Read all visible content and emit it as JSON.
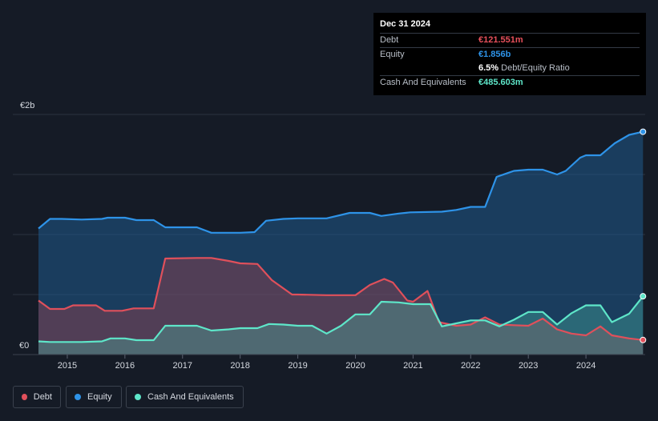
{
  "tooltip": {
    "date": "Dec 31 2024",
    "rows": [
      {
        "label": "Debt",
        "value": "€121.551m",
        "color": "#e8505b"
      },
      {
        "label": "Equity",
        "value": "€1.856b",
        "color": "#2e93e8"
      },
      {
        "label": "",
        "value": "6.5%",
        "suffix": " Debt/Equity Ratio",
        "color": "#ffffff"
      },
      {
        "label": "Cash And Equivalents",
        "value": "€485.603m",
        "color": "#5ee6c9"
      }
    ]
  },
  "legend": [
    {
      "label": "Debt",
      "color": "#e0505b"
    },
    {
      "label": "Equity",
      "color": "#2e93e8"
    },
    {
      "label": "Cash And Equivalents",
      "color": "#5ee6c9"
    }
  ],
  "chart_data": {
    "type": "area",
    "y_axis_labels": [
      "€2b",
      "€0"
    ],
    "ylim": [
      0,
      2000
    ],
    "xlim": [
      2014.5,
      2025.0
    ],
    "x_ticks": [
      "2015",
      "2016",
      "2017",
      "2018",
      "2019",
      "2020",
      "2021",
      "2022",
      "2023",
      "2024"
    ],
    "grid": true,
    "series": [
      {
        "name": "Equity",
        "color": "#2e93e8",
        "points": [
          [
            2014.5,
            1050
          ],
          [
            2014.7,
            1130
          ],
          [
            2014.9,
            1130
          ],
          [
            2015.25,
            1125
          ],
          [
            2015.6,
            1130
          ],
          [
            2015.7,
            1140
          ],
          [
            2016.0,
            1140
          ],
          [
            2016.2,
            1120
          ],
          [
            2016.5,
            1120
          ],
          [
            2016.7,
            1060
          ],
          [
            2017.25,
            1060
          ],
          [
            2017.5,
            1015
          ],
          [
            2018.0,
            1015
          ],
          [
            2018.25,
            1020
          ],
          [
            2018.45,
            1115
          ],
          [
            2018.75,
            1130
          ],
          [
            2019.0,
            1135
          ],
          [
            2019.5,
            1135
          ],
          [
            2019.9,
            1180
          ],
          [
            2020.25,
            1180
          ],
          [
            2020.45,
            1155
          ],
          [
            2020.75,
            1175
          ],
          [
            2020.95,
            1185
          ],
          [
            2021.5,
            1190
          ],
          [
            2021.75,
            1205
          ],
          [
            2022.0,
            1230
          ],
          [
            2022.25,
            1230
          ],
          [
            2022.45,
            1480
          ],
          [
            2022.75,
            1530
          ],
          [
            2023.0,
            1540
          ],
          [
            2023.25,
            1540
          ],
          [
            2023.5,
            1500
          ],
          [
            2023.65,
            1530
          ],
          [
            2023.9,
            1640
          ],
          [
            2024.0,
            1660
          ],
          [
            2024.25,
            1660
          ],
          [
            2024.5,
            1760
          ],
          [
            2024.75,
            1830
          ],
          [
            2024.99,
            1856
          ]
        ]
      },
      {
        "name": "Debt",
        "color": "#e0505b",
        "points": [
          [
            2014.5,
            450
          ],
          [
            2014.7,
            380
          ],
          [
            2014.95,
            380
          ],
          [
            2015.1,
            410
          ],
          [
            2015.5,
            410
          ],
          [
            2015.65,
            365
          ],
          [
            2015.95,
            365
          ],
          [
            2016.15,
            385
          ],
          [
            2016.5,
            385
          ],
          [
            2016.7,
            800
          ],
          [
            2017.25,
            805
          ],
          [
            2017.5,
            805
          ],
          [
            2017.8,
            780
          ],
          [
            2018.0,
            760
          ],
          [
            2018.3,
            755
          ],
          [
            2018.55,
            620
          ],
          [
            2018.9,
            500
          ],
          [
            2019.0,
            500
          ],
          [
            2019.5,
            495
          ],
          [
            2020.0,
            495
          ],
          [
            2020.25,
            580
          ],
          [
            2020.5,
            630
          ],
          [
            2020.65,
            600
          ],
          [
            2020.9,
            450
          ],
          [
            2021.0,
            440
          ],
          [
            2021.25,
            530
          ],
          [
            2021.45,
            270
          ],
          [
            2021.75,
            240
          ],
          [
            2022.0,
            250
          ],
          [
            2022.25,
            310
          ],
          [
            2022.5,
            250
          ],
          [
            2022.75,
            245
          ],
          [
            2023.0,
            240
          ],
          [
            2023.25,
            300
          ],
          [
            2023.5,
            210
          ],
          [
            2023.75,
            175
          ],
          [
            2024.0,
            160
          ],
          [
            2024.25,
            235
          ],
          [
            2024.45,
            160
          ],
          [
            2024.75,
            135
          ],
          [
            2024.99,
            121.551
          ]
        ]
      },
      {
        "name": "Cash And Equivalents",
        "color": "#5ee6c9",
        "points": [
          [
            2014.5,
            110
          ],
          [
            2014.7,
            105
          ],
          [
            2015.25,
            105
          ],
          [
            2015.6,
            110
          ],
          [
            2015.75,
            135
          ],
          [
            2016.0,
            135
          ],
          [
            2016.2,
            120
          ],
          [
            2016.5,
            120
          ],
          [
            2016.7,
            240
          ],
          [
            2017.25,
            240
          ],
          [
            2017.5,
            200
          ],
          [
            2017.8,
            210
          ],
          [
            2018.0,
            220
          ],
          [
            2018.3,
            220
          ],
          [
            2018.5,
            255
          ],
          [
            2018.75,
            250
          ],
          [
            2019.0,
            240
          ],
          [
            2019.25,
            240
          ],
          [
            2019.5,
            175
          ],
          [
            2019.75,
            240
          ],
          [
            2020.0,
            335
          ],
          [
            2020.25,
            335
          ],
          [
            2020.45,
            440
          ],
          [
            2020.75,
            435
          ],
          [
            2021.0,
            420
          ],
          [
            2021.3,
            420
          ],
          [
            2021.5,
            235
          ],
          [
            2021.75,
            260
          ],
          [
            2022.0,
            285
          ],
          [
            2022.25,
            285
          ],
          [
            2022.5,
            235
          ],
          [
            2022.75,
            290
          ],
          [
            2023.0,
            355
          ],
          [
            2023.25,
            355
          ],
          [
            2023.5,
            250
          ],
          [
            2023.75,
            345
          ],
          [
            2024.0,
            410
          ],
          [
            2024.25,
            410
          ],
          [
            2024.45,
            270
          ],
          [
            2024.75,
            340
          ],
          [
            2024.99,
            485.603
          ]
        ]
      }
    ]
  }
}
